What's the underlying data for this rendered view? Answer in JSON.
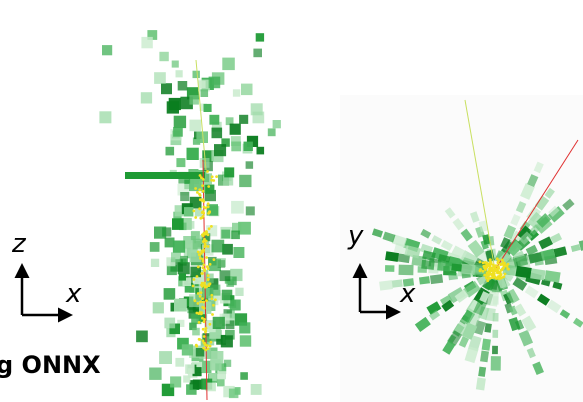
{
  "left_axes": {
    "vertical": "z",
    "horizontal": "x"
  },
  "right_axes": {
    "vertical": "y",
    "horizontal": "x"
  },
  "caption": "g ONNX"
}
